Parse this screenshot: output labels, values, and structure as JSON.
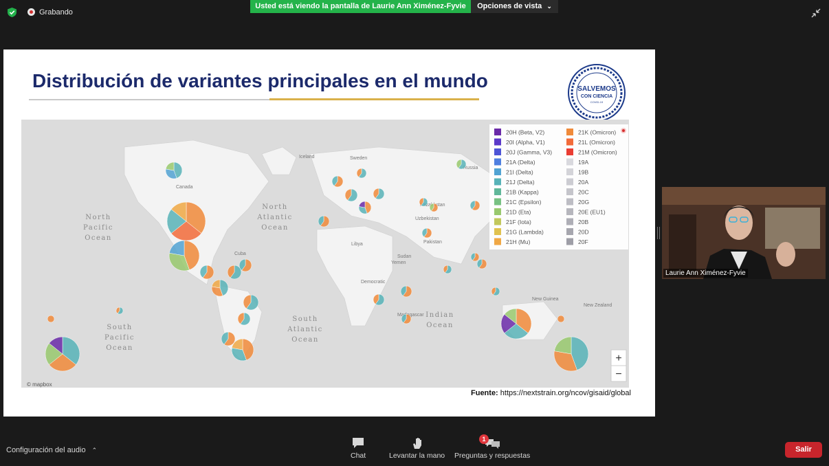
{
  "topbar": {
    "recording_label": "Grabando",
    "share_banner": "Usted está viendo la pantalla de Laurie Ann Ximénez-Fyvie",
    "view_options_label": "Opciones de vista"
  },
  "slide": {
    "title": "Distribución de variantes principales en el mundo",
    "logo": {
      "line1": "SALVEMOS",
      "line2": "CON CIENCIA",
      "line3": "COVID-19"
    },
    "source_prefix": "Fuente:",
    "source_url": "https://nextstrain.org/ncov/gisaid/global",
    "map": {
      "ocean_labels": [
        "North Pacific Ocean",
        "North Atlantic Ocean",
        "South Pacific Ocean",
        "South Atlantic Ocean",
        "Indian Ocean"
      ],
      "place_labels": [
        "Canada",
        "Russia",
        "Kazakhstan",
        "Libya",
        "Sudan",
        "Iceland",
        "Sweden",
        "Uzbekistan",
        "Pakistan",
        "Cuba",
        "Yemen",
        "Madagascar",
        "New Guinea",
        "New Zealand",
        "Democratic"
      ],
      "attribution": "© mapbox",
      "zoom_in": "+",
      "zoom_out": "−",
      "legend": [
        {
          "label": "20H (Beta, V2)",
          "color": "#6a2aa8"
        },
        {
          "label": "21K (Omicron)",
          "color": "#f08a3a"
        },
        {
          "label": "20I (Alpha, V1)",
          "color": "#5b39c9"
        },
        {
          "label": "21L (Omicron)",
          "color": "#f26b3a"
        },
        {
          "label": "20J (Gamma, V3)",
          "color": "#4d54d6"
        },
        {
          "label": "21M (Omicron)",
          "color": "#ea3d33"
        },
        {
          "label": "21A (Delta)",
          "color": "#4f7fe0"
        },
        {
          "label": "19A",
          "color": "#d9d9de"
        },
        {
          "label": "21I (Delta)",
          "color": "#51a3d3"
        },
        {
          "label": "19B",
          "color": "#d4d4d9"
        },
        {
          "label": "21J (Delta)",
          "color": "#58b3b8"
        },
        {
          "label": "20A",
          "color": "#ccccd2"
        },
        {
          "label": "21B (Kappa)",
          "color": "#61b89a"
        },
        {
          "label": "20C",
          "color": "#c5c5cb"
        },
        {
          "label": "21C (Epsilon)",
          "color": "#78c283"
        },
        {
          "label": "20G",
          "color": "#bdbdc4"
        },
        {
          "label": "21D (Eta)",
          "color": "#99c96e"
        },
        {
          "label": "20E (EU1)",
          "color": "#b6b6bd"
        },
        {
          "label": "21F (Iota)",
          "color": "#c2c85c"
        },
        {
          "label": "20B",
          "color": "#aeaeb6"
        },
        {
          "label": "21G (Lambda)",
          "color": "#e0c24f"
        },
        {
          "label": "20D",
          "color": "#a6a6ae"
        },
        {
          "label": "21H (Mu)",
          "color": "#f0a845"
        },
        {
          "label": "20F",
          "color": "#9e9ea7"
        }
      ]
    }
  },
  "video": {
    "participant_name": "Laurie Ann Ximénez-Fyvie"
  },
  "bottombar": {
    "audio_config_label": "Configuración del audio",
    "chat_label": "Chat",
    "raise_hand_label": "Levantar la mano",
    "qa_label": "Preguntas y respuestas",
    "qa_badge": "1",
    "leave_label": "Salir"
  },
  "colors": {
    "banner_green": "#24b34a",
    "leave_red": "#c8252c",
    "title_navy": "#1c2a6b"
  }
}
